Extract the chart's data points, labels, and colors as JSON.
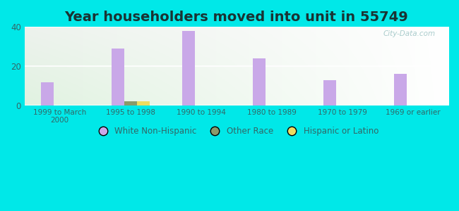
{
  "title": "Year householders moved into unit in 55749",
  "categories": [
    "1999 to March\n2000",
    "1995 to 1998",
    "1990 to 1994",
    "1980 to 1989",
    "1970 to 1979",
    "1969 or earlier"
  ],
  "white_non_hispanic": [
    12,
    29,
    38,
    24,
    13,
    16
  ],
  "other_race": [
    0,
    2,
    0,
    0,
    0,
    0
  ],
  "hispanic_or_latino": [
    0,
    2,
    0,
    0,
    0,
    0
  ],
  "white_color": "#c9a8e8",
  "other_race_color": "#8a9a6a",
  "hispanic_color": "#eedc60",
  "background_outer": "#00e8e8",
  "ylim": [
    0,
    40
  ],
  "yticks": [
    0,
    20,
    40
  ],
  "bar_width": 0.18,
  "title_fontsize": 14
}
